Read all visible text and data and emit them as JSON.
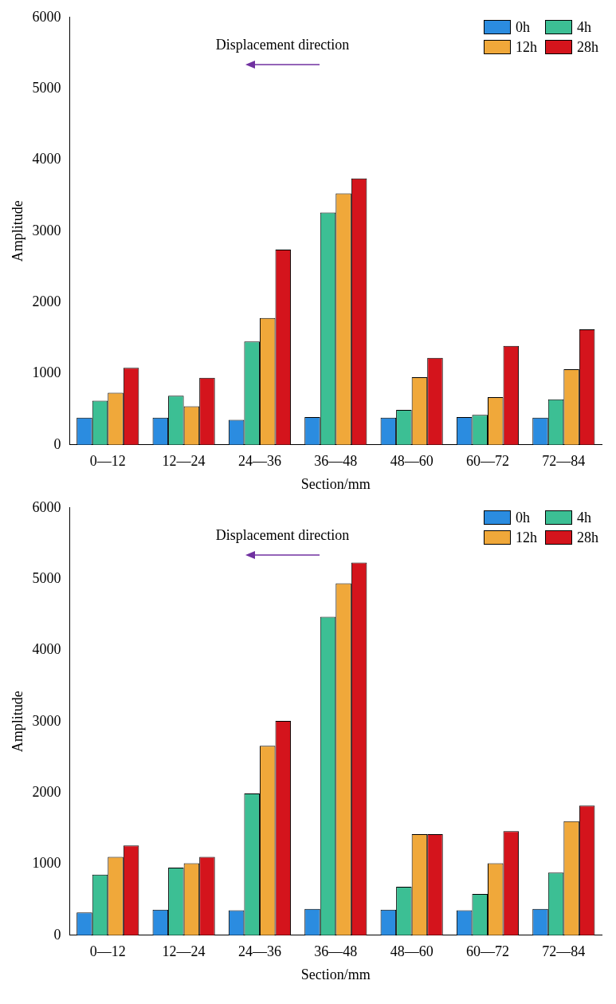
{
  "chart_data": [
    {
      "type": "bar",
      "xlabel": "Section/mm",
      "ylabel": "Amplitude",
      "categories": [
        "0—12",
        "12—24",
        "24—36",
        "36—48",
        "48—60",
        "60—72",
        "72—84"
      ],
      "series": [
        {
          "name": "0h",
          "color": "#2b8ce0",
          "values": [
            380,
            380,
            350,
            390,
            380,
            390,
            380
          ]
        },
        {
          "name": "4h",
          "color": "#3cbf94",
          "values": [
            620,
            690,
            1450,
            3260,
            490,
            420,
            640
          ]
        },
        {
          "name": "12h",
          "color": "#f0a83a",
          "values": [
            730,
            540,
            1780,
            3530,
            950,
            670,
            1060
          ]
        },
        {
          "name": "28h",
          "color": "#d4141c",
          "values": [
            1080,
            940,
            2740,
            3740,
            1220,
            1390,
            1620
          ]
        }
      ],
      "ylim": [
        0,
        6000
      ],
      "yticks": [
        0,
        1000,
        2000,
        3000,
        4000,
        5000,
        6000
      ],
      "legend": "top right",
      "annotations": [
        "Displacement direction"
      ]
    },
    {
      "type": "bar",
      "xlabel": "Section/mm",
      "ylabel": "Amplitude",
      "categories": [
        "0—12",
        "12—24",
        "24—36",
        "36—48",
        "48—60",
        "60—72",
        "72—84"
      ],
      "series": [
        {
          "name": "0h",
          "color": "#2b8ce0",
          "values": [
            320,
            360,
            350,
            370,
            360,
            350,
            370
          ]
        },
        {
          "name": "4h",
          "color": "#3cbf94",
          "values": [
            850,
            950,
            1990,
            4470,
            680,
            580,
            880
          ]
        },
        {
          "name": "12h",
          "color": "#f0a83a",
          "values": [
            1100,
            1010,
            2660,
            4940,
            1420,
            1010,
            1600
          ]
        },
        {
          "name": "28h",
          "color": "#d4141c",
          "values": [
            1260,
            1100,
            3010,
            5230,
            1420,
            1460,
            1820
          ]
        }
      ],
      "ylim": [
        0,
        6000
      ],
      "yticks": [
        0,
        1000,
        2000,
        3000,
        4000,
        5000,
        6000
      ],
      "legend": "top right",
      "annotations": [
        "Displacement direction"
      ]
    }
  ]
}
